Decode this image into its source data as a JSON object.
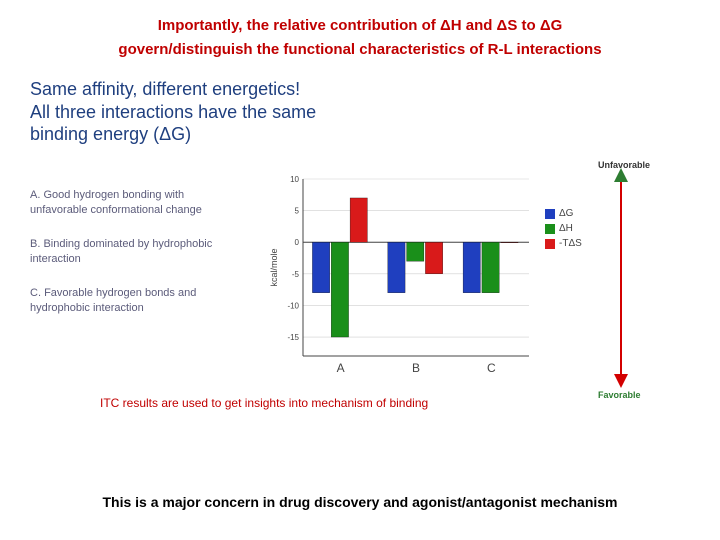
{
  "header": {
    "line1": "Importantly, the relative contribution of ΔH and ΔS to ΔG",
    "line2": "govern/distinguish the functional characteristics of R-L interactions",
    "color": "#c00000"
  },
  "slide_title": {
    "line1": "Same affinity, different energetics!",
    "line2": "All three interactions have the same",
    "line3": "binding energy (ΔG)",
    "color": "#1f3f7f"
  },
  "descriptions": {
    "color": "#5b5b7a",
    "items": [
      {
        "prefix": "A.",
        "text": "Good hydrogen bonding with unfavorable conformational change"
      },
      {
        "prefix": "B.",
        "text": "Binding dominated by hydrophobic interaction"
      },
      {
        "prefix": "C.",
        "text": "Favorable hydrogen bonds and hydrophobic interaction"
      }
    ]
  },
  "chart": {
    "type": "bar",
    "ylabel": "kcal/mole",
    "ylabel_fontsize": 9,
    "categories": [
      "A",
      "B",
      "C"
    ],
    "series": [
      {
        "name": "ΔG",
        "color": "#1f3fbf",
        "values": [
          -8,
          -8,
          -8
        ]
      },
      {
        "name": "ΔH",
        "color": "#1a8f1a",
        "values": [
          -15,
          -3,
          -8
        ]
      },
      {
        "name": "-TΔS",
        "color": "#d91a1a",
        "values": [
          7,
          -5,
          0
        ]
      }
    ],
    "ylim": [
      -18,
      10
    ],
    "yticks": [
      -15,
      -10,
      -5,
      0,
      5,
      10
    ],
    "grid_color": "#cfcfcf",
    "axis_color": "#444444",
    "tick_label_color": "#444444",
    "tick_fontsize": 8,
    "cat_fontsize": 12,
    "bar_group_width": 0.75,
    "background_color": "#ffffff"
  },
  "legend": {
    "items": [
      {
        "swatch": "#1f3fbf",
        "label": "ΔG"
      },
      {
        "swatch": "#1a8f1a",
        "label": "ΔH"
      },
      {
        "swatch": "#d91a1a",
        "label": "-TΔS"
      }
    ],
    "text_color": "#444444"
  },
  "arrow_axis": {
    "line_color": "#d30000",
    "top_head_color": "#2e7d32",
    "bottom_head_color": "#d30000",
    "top_label": "Unfavorable",
    "bottom_label": "Favorable",
    "top_label_color": "#333333",
    "bottom_label_color": "#2e7d32"
  },
  "caption": {
    "text": "ITC results are used to get insights into mechanism of binding",
    "color": "#c00000"
  },
  "footer": {
    "text": "This is a major concern in drug discovery and agonist/antagonist mechanism",
    "color": "#000000"
  }
}
